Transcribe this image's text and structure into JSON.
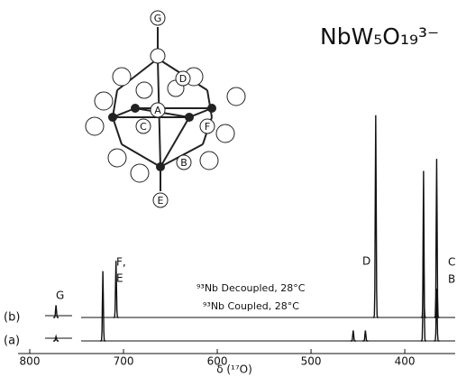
{
  "chart_data": {
    "type": "spectrum",
    "formula": "NbW₅O₁₉³⁻",
    "xlabel": "δ (¹⁷O)",
    "xlim": [
      810,
      352
    ],
    "xticks": [
      800,
      700,
      600,
      500,
      400
    ],
    "ylim": [
      0,
      240
    ],
    "series": [
      {
        "name": "(b)",
        "color": "#111111",
        "x": [
          772,
          708,
          431,
          380,
          366
        ],
        "values": [
          14,
          65,
          232,
          80,
          182
        ]
      },
      {
        "name": "(a)",
        "color": "#111111",
        "x": [
          772,
          722,
          455,
          442,
          380,
          366
        ],
        "values": [
          5,
          80,
          12,
          12,
          195,
          60
        ]
      }
    ],
    "annotations": [
      "G",
      "F,",
      "E",
      "D",
      "C",
      "B",
      "⁹³Nb Decoupled, 28°C",
      "⁹³Nb Coupled, 28°C"
    ],
    "structure_labels": [
      "G",
      "D",
      "A",
      "C",
      "F",
      "B",
      "E"
    ]
  }
}
